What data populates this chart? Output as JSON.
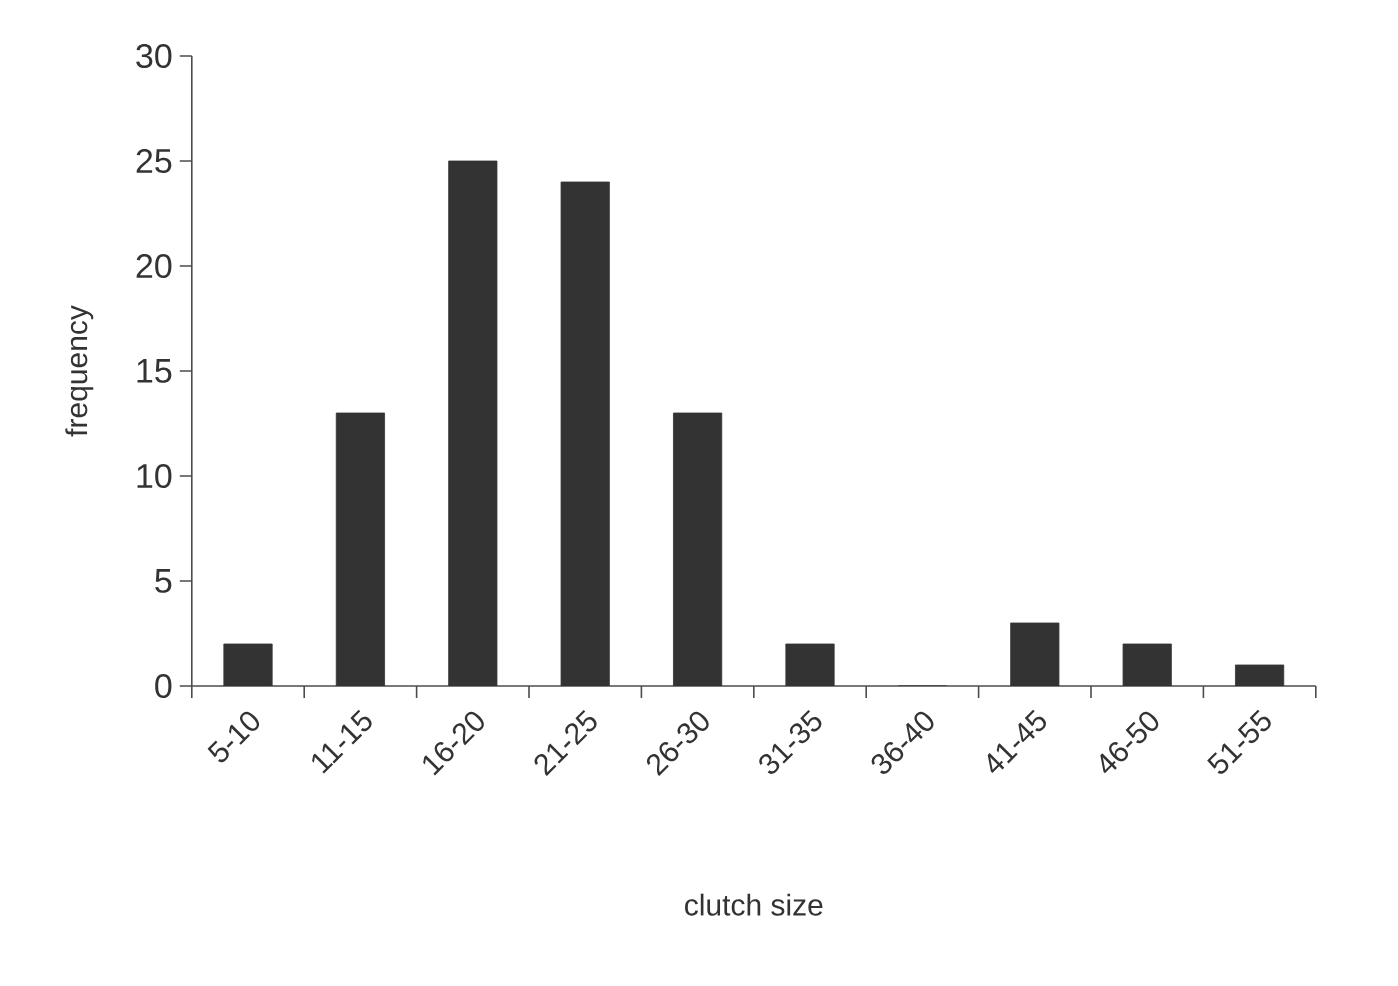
{
  "chart_data": {
    "type": "bar",
    "xlabel": "clutch size",
    "ylabel": "frequency",
    "categories": [
      "5-10",
      "11-15",
      "16-20",
      "21-25",
      "26-30",
      "31-35",
      "36-40",
      "41-45",
      "46-50",
      "51-55"
    ],
    "values": [
      2,
      13,
      25,
      24,
      13,
      2,
      0,
      3,
      2,
      1
    ],
    "color": "#333333",
    "ylim": [
      0,
      30
    ],
    "yticks": [
      0,
      5,
      10,
      15,
      20,
      25,
      30
    ]
  }
}
